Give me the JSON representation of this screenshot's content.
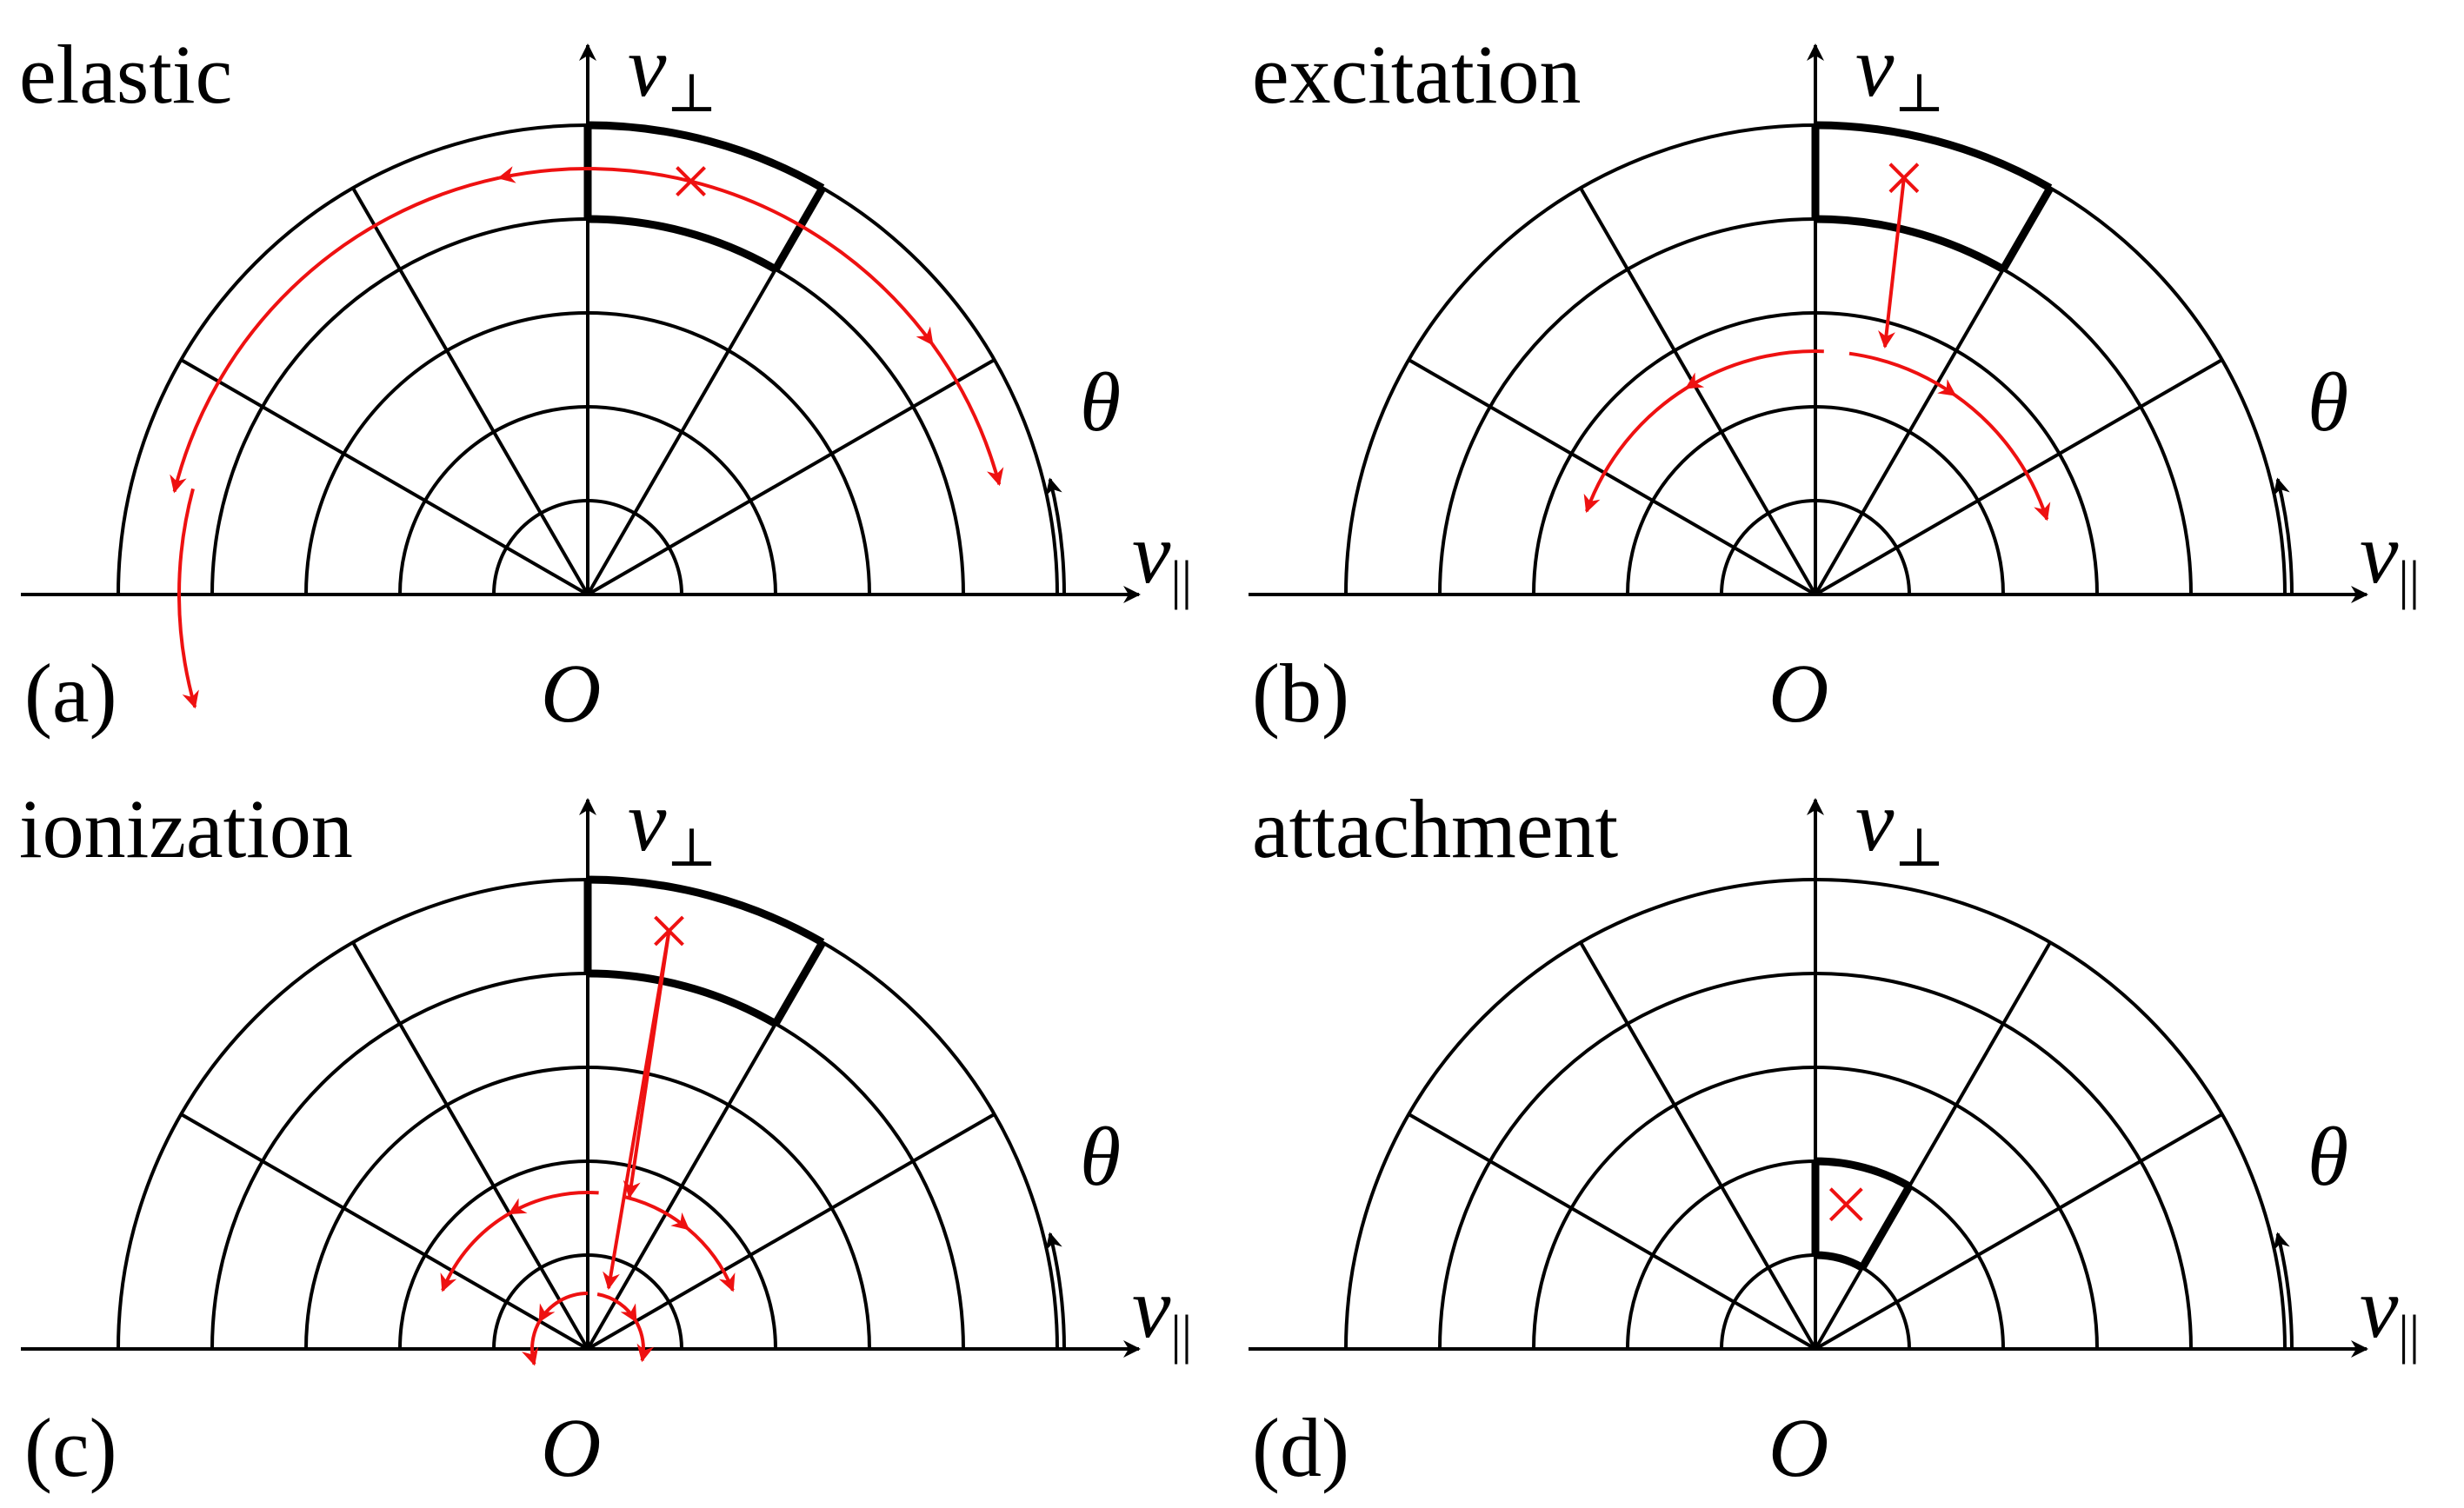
{
  "colors": {
    "grid": "#000000",
    "trajectory": "#ee1111",
    "background": "#ffffff"
  },
  "symbols": {
    "v_perp": "v",
    "perp_sub": "⊥",
    "v_par": "v",
    "par_sub": "||",
    "theta": "θ",
    "origin": "O"
  },
  "panels": [
    {
      "id": "a",
      "label": "(a)",
      "title": "elastic"
    },
    {
      "id": "b",
      "label": "(b)",
      "title": "excitation"
    },
    {
      "id": "c",
      "label": "(c)",
      "title": "ionization"
    },
    {
      "id": "d",
      "label": "(d)",
      "title": "attachment"
    }
  ]
}
